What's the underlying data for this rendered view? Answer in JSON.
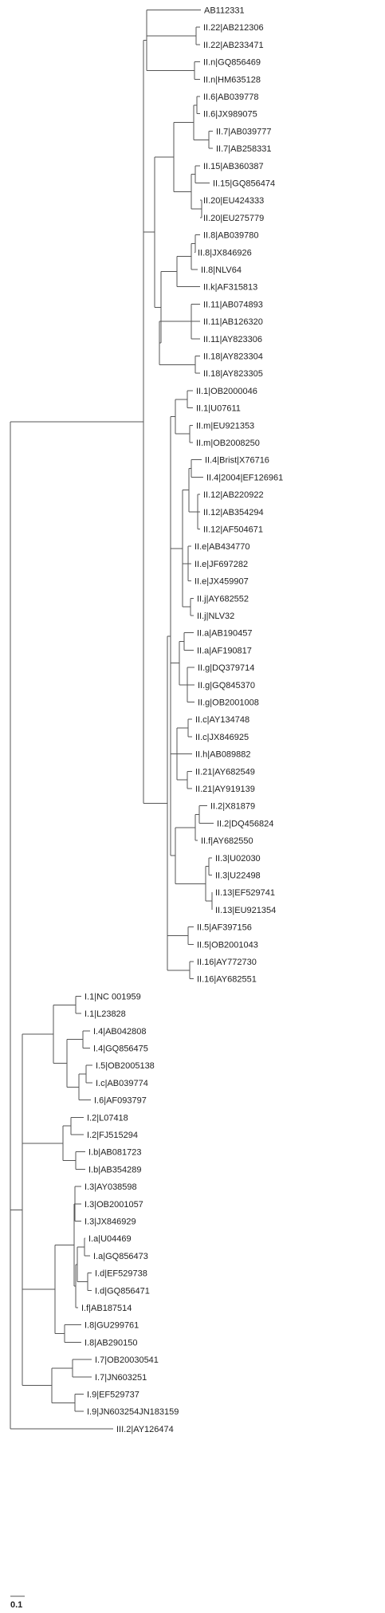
{
  "tree": {
    "line_color": "#555555",
    "text_color": "#222222",
    "scale_bar_label": "0.1",
    "leaves": [
      "AB112331",
      "II.22|AB212306",
      "II.22|AB233471",
      "II.n|GQ856469",
      "II.n|HM635128",
      "II.6|AB039778",
      "II.6|JX989075",
      "II.7|AB039777",
      "II.7|AB258331",
      "II.15|AB360387",
      "II.15|GQ856474",
      "II.20|EU424333",
      "II.20|EU275779",
      "II.8|AB039780",
      "II.8|JX846926",
      "II.8|NLV64",
      "II.k|AF315813",
      "II.11|AB074893",
      "II.11|AB126320",
      "II.11|AY823306",
      "II.18|AY823304",
      "II.18|AY823305",
      "II.1|OB2000046",
      "II.1|U07611",
      "II.m|EU921353",
      "II.m|OB2008250",
      "II.4|Brist|X76716",
      "II.4|2004|EF126961",
      "II.12|AB220922",
      "II.12|AB354294",
      "II.12|AF504671",
      "II.e|AB434770",
      "II.e|JF697282",
      "II.e|JX459907",
      "II.j|AY682552",
      "II.j|NLV32",
      "II.a|AB190457",
      "II.a|AF190817",
      "II.g|DQ379714",
      "II.g|GQ845370",
      "II.g|OB2001008",
      "II.c|AY134748",
      "II.c|JX846925",
      "II.h|AB089882",
      "II.21|AY682549",
      "II.21|AY919139",
      "II.2|X81879",
      "II.2|DQ456824",
      "II.f|AY682550",
      "II.3|U02030",
      "II.3|U22498",
      "II.13|EF529741",
      "II.13|EU921354",
      "II.5|AF397156",
      "II.5|OB2001043",
      "II.16|AY772730",
      "II.16|AY682551",
      "I.1|NC 001959",
      "I.1|L23828",
      "I.4|AB042808",
      "I.4|GQ856475",
      "I.5|OB2005138",
      "I.c|AB039774",
      "I.6|AF093797",
      "I.2|L07418",
      "I.2|FJ515294",
      "I.b|AB081723",
      "I.b|AB354289",
      "I.3|AY038598",
      "I.3|OB2001057",
      "I.3|JX846929",
      "I.a|U04469",
      "I.a|GQ856473",
      "I.d|EF529738",
      "I.d|GQ856471",
      "I.f|AB187514",
      "I.8|GU299761",
      "I.8|AB290150",
      "I.7|OB20030541",
      "I.7|JN603251",
      "I.9|EF529737",
      "I.9|JN603254JN183159",
      "III.2|AY126474"
    ]
  }
}
